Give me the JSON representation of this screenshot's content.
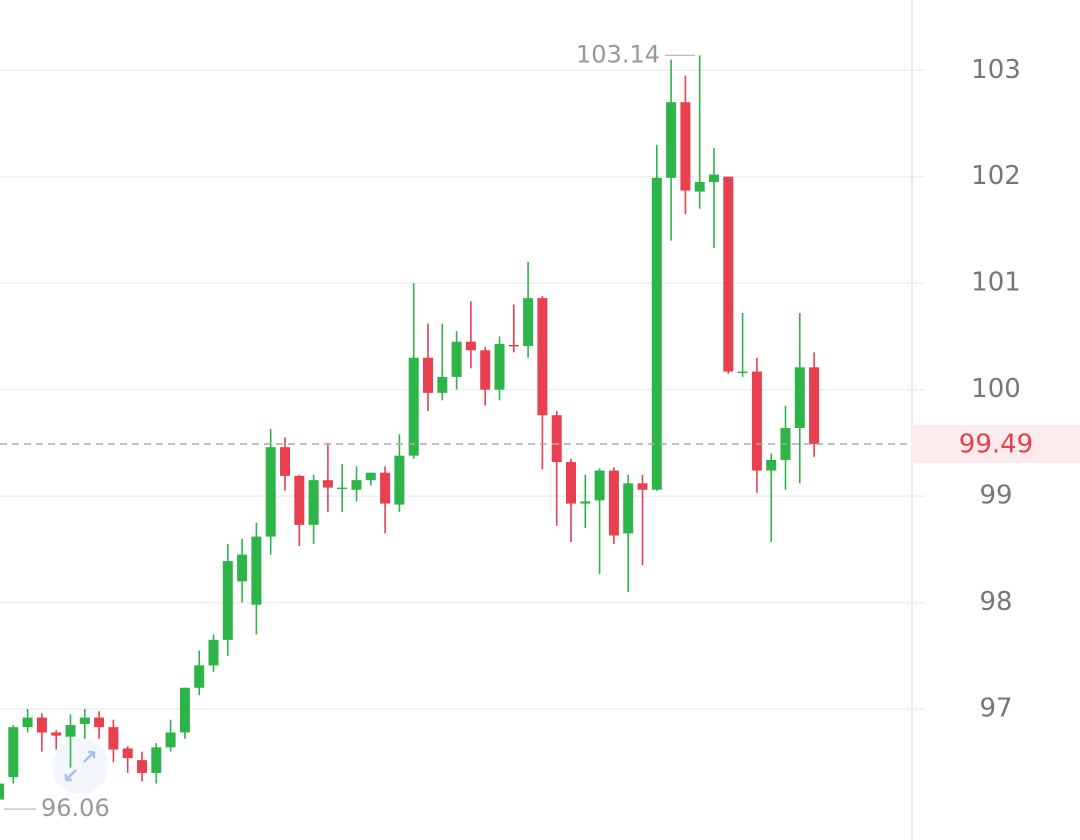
{
  "chart_data": {
    "type": "candlestick",
    "up_color": "#2db54a",
    "down_color": "#e8404f",
    "ylim": [
      95.77,
      103.66
    ],
    "yticks": [
      97,
      98,
      99,
      100,
      101,
      102,
      103
    ],
    "grid": true,
    "last_price": 99.49,
    "max_label": 103.14,
    "min_label": 96.06,
    "open": [
      96.15,
      96.36,
      96.83,
      96.92,
      96.78,
      96.74,
      96.86,
      96.92,
      96.83,
      96.63,
      96.52,
      96.4,
      96.64,
      96.78,
      97.2,
      97.41,
      97.65,
      98.2,
      97.98,
      98.62,
      99.46,
      99.19,
      98.73,
      99.15,
      99.07,
      99.06,
      99.15,
      99.22,
      98.92,
      99.38,
      100.3,
      99.97,
      100.12,
      100.45,
      100.37,
      100.0,
      100.42,
      100.41,
      100.86,
      99.76,
      99.32,
      98.93,
      98.96,
      99.24,
      98.65,
      99.12,
      99.06,
      101.99,
      102.7,
      101.86,
      101.95,
      102.0,
      100.16,
      100.17,
      99.24,
      99.34,
      99.64,
      100.21
    ],
    "high": [
      96.4,
      96.85,
      97.0,
      96.96,
      96.8,
      96.95,
      97.0,
      96.98,
      96.9,
      96.65,
      96.6,
      96.68,
      96.9,
      97.2,
      97.55,
      97.7,
      98.55,
      98.6,
      98.75,
      99.63,
      99.55,
      99.2,
      99.2,
      99.5,
      99.3,
      99.28,
      99.22,
      99.28,
      99.58,
      101.0,
      100.62,
      100.62,
      100.55,
      100.83,
      100.4,
      100.5,
      100.8,
      101.2,
      100.88,
      99.8,
      99.35,
      99.2,
      99.26,
      99.27,
      99.2,
      99.2,
      102.3,
      103.1,
      102.95,
      103.14,
      102.27,
      102.0,
      100.72,
      100.3,
      99.4,
      99.85,
      100.72,
      100.35
    ],
    "low": [
      96.06,
      96.3,
      96.78,
      96.6,
      96.62,
      96.45,
      96.72,
      96.72,
      96.5,
      96.4,
      96.32,
      96.3,
      96.6,
      96.72,
      97.13,
      97.35,
      97.5,
      98.0,
      97.7,
      98.45,
      99.05,
      98.53,
      98.55,
      98.85,
      98.85,
      98.95,
      99.1,
      98.65,
      98.85,
      99.35,
      99.8,
      99.9,
      100.0,
      100.2,
      99.85,
      99.9,
      100.35,
      100.3,
      99.25,
      98.72,
      98.57,
      98.7,
      98.27,
      98.55,
      98.1,
      98.35,
      99.05,
      101.4,
      101.65,
      101.7,
      101.33,
      100.15,
      100.12,
      99.03,
      98.57,
      99.06,
      99.12,
      99.37
    ],
    "close": [
      96.3,
      96.83,
      96.92,
      96.78,
      96.75,
      96.85,
      96.92,
      96.83,
      96.62,
      96.54,
      96.4,
      96.64,
      96.78,
      97.2,
      97.41,
      97.65,
      98.39,
      98.45,
      98.62,
      99.46,
      99.19,
      98.73,
      99.15,
      99.08,
      99.08,
      99.15,
      99.22,
      98.93,
      99.38,
      100.3,
      99.97,
      100.12,
      100.45,
      100.37,
      100.0,
      100.43,
      100.41,
      100.86,
      99.76,
      99.32,
      98.93,
      98.95,
      99.24,
      98.63,
      99.12,
      99.06,
      101.99,
      102.7,
      101.87,
      101.95,
      102.02,
      100.17,
      100.17,
      99.24,
      99.34,
      99.64,
      100.21,
      99.49
    ]
  }
}
